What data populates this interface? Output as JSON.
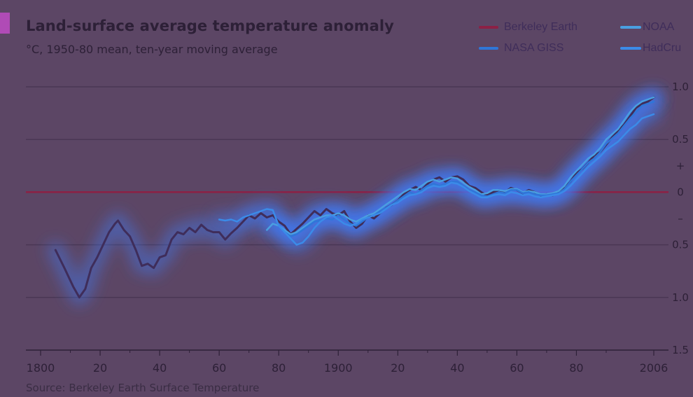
{
  "colors": {
    "background": "#5c4665",
    "text": "#2d2037",
    "grid": "#4a3754",
    "axis": "#2d2037",
    "zero_line": "#8c2045",
    "glow": "#3f7bff"
  },
  "chart_data": {
    "type": "line",
    "title": "Land-surface average temperature anomaly",
    "subtitle": "°C, 1950-80 mean, ten-year moving average",
    "source": "Source: Berkeley Earth Surface Temperature",
    "xlabel": "",
    "ylabel": "",
    "xlim": [
      1795,
      2007
    ],
    "ylim": [
      -1.5,
      1.0
    ],
    "grid": true,
    "legend_position": "top-right",
    "x_ticks": [
      {
        "value": 1800,
        "label": "1800"
      },
      {
        "value": 1820,
        "label": "20"
      },
      {
        "value": 1840,
        "label": "40"
      },
      {
        "value": 1860,
        "label": "60"
      },
      {
        "value": 1880,
        "label": "80"
      },
      {
        "value": 1900,
        "label": "1900"
      },
      {
        "value": 1920,
        "label": "20"
      },
      {
        "value": 1940,
        "label": "40"
      },
      {
        "value": 1960,
        "label": "60"
      },
      {
        "value": 1980,
        "label": "80"
      },
      {
        "value": 2006,
        "label": "2006"
      }
    ],
    "y_ticks": [
      {
        "value": 1.0,
        "label": "1.0"
      },
      {
        "value": 0.5,
        "label": "0.5"
      },
      {
        "value": 0.25,
        "label": "+"
      },
      {
        "value": 0.0,
        "label": "0"
      },
      {
        "value": -0.25,
        "label": "–"
      },
      {
        "value": -0.5,
        "label": "0.5"
      },
      {
        "value": -1.0,
        "label": "1.0"
      },
      {
        "value": -1.5,
        "label": "1.5"
      }
    ],
    "series": [
      {
        "name": "Berkeley Earth",
        "color": "#3f2d5a",
        "width": 3,
        "x": [
          1805,
          1808,
          1811,
          1813,
          1815,
          1817,
          1819,
          1821,
          1823,
          1825,
          1826,
          1828,
          1830,
          1832,
          1834,
          1836,
          1838,
          1840,
          1842,
          1844,
          1846,
          1848,
          1850,
          1852,
          1854,
          1856,
          1858,
          1860,
          1862,
          1864,
          1866,
          1868,
          1870,
          1872,
          1874,
          1876,
          1878,
          1880,
          1882,
          1884,
          1886,
          1888,
          1890,
          1892,
          1894,
          1896,
          1898,
          1900,
          1902,
          1904,
          1906,
          1908,
          1910,
          1912,
          1914,
          1916,
          1918,
          1920,
          1922,
          1924,
          1926,
          1928,
          1930,
          1932,
          1934,
          1936,
          1938,
          1940,
          1942,
          1944,
          1946,
          1948,
          1950,
          1952,
          1954,
          1956,
          1958,
          1960,
          1962,
          1964,
          1966,
          1968,
          1970,
          1972,
          1974,
          1976,
          1978,
          1980,
          1982,
          1984,
          1986,
          1988,
          1990,
          1992,
          1994,
          1996,
          1998,
          2000,
          2002,
          2004,
          2006
        ],
        "y": [
          -0.55,
          -0.72,
          -0.9,
          -1.0,
          -0.92,
          -0.72,
          -0.62,
          -0.5,
          -0.38,
          -0.3,
          -0.27,
          -0.36,
          -0.42,
          -0.55,
          -0.7,
          -0.68,
          -0.72,
          -0.62,
          -0.6,
          -0.45,
          -0.38,
          -0.4,
          -0.34,
          -0.38,
          -0.31,
          -0.36,
          -0.38,
          -0.38,
          -0.45,
          -0.39,
          -0.34,
          -0.28,
          -0.22,
          -0.25,
          -0.2,
          -0.24,
          -0.22,
          -0.28,
          -0.32,
          -0.4,
          -0.35,
          -0.3,
          -0.24,
          -0.18,
          -0.22,
          -0.16,
          -0.2,
          -0.22,
          -0.18,
          -0.28,
          -0.34,
          -0.3,
          -0.22,
          -0.25,
          -0.2,
          -0.15,
          -0.12,
          -0.08,
          -0.02,
          0.02,
          0.05,
          0.02,
          0.08,
          0.12,
          0.14,
          0.1,
          0.14,
          0.15,
          0.12,
          0.06,
          0.04,
          0.0,
          -0.03,
          0.0,
          0.02,
          0.0,
          0.04,
          0.02,
          -0.01,
          0.02,
          0.0,
          -0.03,
          -0.02,
          -0.03,
          0.0,
          0.04,
          0.1,
          0.18,
          0.22,
          0.28,
          0.35,
          0.38,
          0.45,
          0.52,
          0.58,
          0.64,
          0.72,
          0.8,
          0.84,
          0.86,
          0.9
        ]
      },
      {
        "name": "NOAA",
        "color": "#4a9fe0",
        "width": 2.5,
        "x": [
          1876,
          1878,
          1880,
          1882,
          1884,
          1886,
          1888,
          1890,
          1892,
          1894,
          1896,
          1898,
          1900,
          1902,
          1904,
          1906,
          1908,
          1910,
          1912,
          1914,
          1916,
          1918,
          1920,
          1922,
          1924,
          1926,
          1928,
          1930,
          1932,
          1934,
          1936,
          1938,
          1940,
          1942,
          1944,
          1946,
          1948,
          1950,
          1952,
          1954,
          1956,
          1958,
          1960,
          1962,
          1964,
          1966,
          1968,
          1970,
          1972,
          1974,
          1976,
          1978,
          1980,
          1982,
          1984,
          1986,
          1988,
          1990,
          1992,
          1994,
          1996,
          1998,
          2000,
          2002,
          2004,
          2006
        ],
        "y": [
          -0.36,
          -0.3,
          -0.32,
          -0.36,
          -0.4,
          -0.38,
          -0.34,
          -0.3,
          -0.26,
          -0.24,
          -0.22,
          -0.22,
          -0.2,
          -0.22,
          -0.26,
          -0.28,
          -0.25,
          -0.22,
          -0.2,
          -0.16,
          -0.12,
          -0.08,
          -0.04,
          0.0,
          0.03,
          0.02,
          0.06,
          0.1,
          0.12,
          0.1,
          0.12,
          0.14,
          0.13,
          0.09,
          0.05,
          0.02,
          -0.02,
          -0.01,
          0.02,
          0.02,
          0.01,
          0.03,
          0.03,
          0.0,
          0.01,
          0.0,
          -0.02,
          -0.02,
          -0.01,
          0.01,
          0.06,
          0.14,
          0.2,
          0.26,
          0.32,
          0.36,
          0.42,
          0.5,
          0.55,
          0.6,
          0.68,
          0.76,
          0.82,
          0.86,
          0.88,
          0.9
        ]
      },
      {
        "name": "NASA GISS",
        "color": "#2f76d8",
        "width": 2.5,
        "x": [
          1880,
          1882,
          1884,
          1886,
          1888,
          1890,
          1892,
          1894,
          1896,
          1898,
          1900,
          1902,
          1904,
          1906,
          1908,
          1910,
          1912,
          1914,
          1916,
          1918,
          1920,
          1922,
          1924,
          1926,
          1928,
          1930,
          1932,
          1934,
          1936,
          1938,
          1940,
          1942,
          1944,
          1946,
          1948,
          1950,
          1952,
          1954,
          1956,
          1958,
          1960,
          1962,
          1964,
          1966,
          1968,
          1970,
          1972,
          1974,
          1976,
          1978,
          1980,
          1982,
          1984,
          1986,
          1988,
          1990,
          1992,
          1994,
          1996,
          1998,
          2000,
          2002,
          2004,
          2006
        ],
        "y": [
          -0.32,
          -0.38,
          -0.42,
          -0.4,
          -0.36,
          -0.32,
          -0.28,
          -0.27,
          -0.25,
          -0.26,
          -0.22,
          -0.26,
          -0.3,
          -0.32,
          -0.28,
          -0.24,
          -0.22,
          -0.18,
          -0.15,
          -0.12,
          -0.08,
          -0.04,
          0.0,
          -0.02,
          0.02,
          0.06,
          0.08,
          0.06,
          0.08,
          0.1,
          0.1,
          0.06,
          0.02,
          0.0,
          -0.03,
          -0.04,
          -0.02,
          0.0,
          -0.01,
          0.02,
          0.02,
          -0.01,
          0.0,
          -0.02,
          -0.03,
          -0.03,
          -0.02,
          -0.01,
          0.03,
          0.1,
          0.16,
          0.22,
          0.28,
          0.32,
          0.38,
          0.46,
          0.51,
          0.56,
          0.63,
          0.7,
          0.76,
          0.82,
          0.84,
          0.86
        ]
      },
      {
        "name": "HadCru",
        "color": "#3b8be8",
        "width": 2.5,
        "x": [
          1860,
          1862,
          1864,
          1866,
          1868,
          1870,
          1872,
          1874,
          1876,
          1878,
          1880,
          1882,
          1884,
          1886,
          1888,
          1890,
          1892,
          1894,
          1896,
          1898,
          1900,
          1902,
          1904,
          1906,
          1908,
          1910,
          1912,
          1914,
          1916,
          1918,
          1920,
          1922,
          1924,
          1926,
          1928,
          1930,
          1932,
          1934,
          1936,
          1938,
          1940,
          1942,
          1944,
          1946,
          1948,
          1950,
          1952,
          1954,
          1956,
          1958,
          1960,
          1962,
          1964,
          1966,
          1968,
          1970,
          1972,
          1974,
          1976,
          1978,
          1980,
          1982,
          1984,
          1986,
          1988,
          1990,
          1992,
          1994,
          1996,
          1998,
          2000,
          2002,
          2004,
          2006
        ],
        "y": [
          -0.26,
          -0.27,
          -0.26,
          -0.28,
          -0.24,
          -0.22,
          -0.2,
          -0.18,
          -0.16,
          -0.17,
          -0.32,
          -0.38,
          -0.44,
          -0.5,
          -0.48,
          -0.42,
          -0.34,
          -0.28,
          -0.24,
          -0.22,
          -0.26,
          -0.3,
          -0.32,
          -0.3,
          -0.26,
          -0.24,
          -0.22,
          -0.2,
          -0.16,
          -0.12,
          -0.1,
          -0.06,
          -0.03,
          -0.02,
          0.0,
          0.04,
          0.06,
          0.05,
          0.06,
          0.09,
          0.08,
          0.05,
          0.01,
          -0.02,
          -0.05,
          -0.05,
          -0.03,
          -0.02,
          -0.03,
          0.0,
          -0.01,
          -0.03,
          -0.02,
          -0.04,
          -0.05,
          -0.04,
          -0.03,
          -0.02,
          0.01,
          0.06,
          0.12,
          0.18,
          0.24,
          0.29,
          0.34,
          0.4,
          0.44,
          0.48,
          0.54,
          0.6,
          0.64,
          0.7,
          0.72,
          0.74
        ]
      }
    ]
  }
}
